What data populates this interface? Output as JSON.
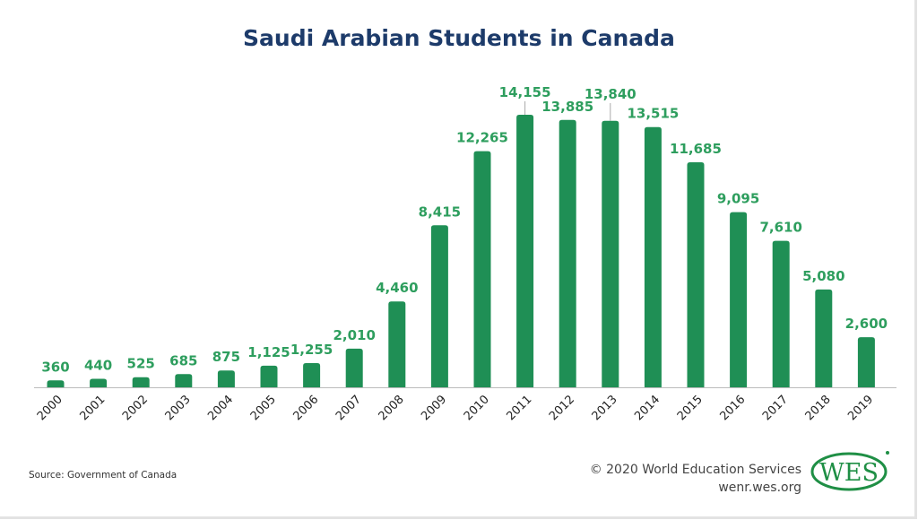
{
  "chart_data": {
    "type": "bar",
    "title": "Saudi Arabian Students in Canada",
    "categories": [
      "2000",
      "2001",
      "2002",
      "2003",
      "2004",
      "2005",
      "2006",
      "2007",
      "2008",
      "2009",
      "2010",
      "2011",
      "2012",
      "2013",
      "2014",
      "2015",
      "2016",
      "2017",
      "2018",
      "2019"
    ],
    "values": [
      360,
      440,
      525,
      685,
      875,
      1125,
      1255,
      2010,
      4460,
      8415,
      12265,
      14155,
      13885,
      13840,
      13515,
      11685,
      9095,
      7610,
      5080,
      2600
    ],
    "data_labels": [
      "360",
      "440",
      "525",
      "685",
      "875",
      "1,125",
      "1,255",
      "2,010",
      "4,460",
      "8,415",
      "12,265",
      "14,155",
      "13,885",
      "13,840",
      "13,515",
      "11,685",
      "9,095",
      "7,610",
      "5,080",
      "2,600"
    ],
    "xlabel": "",
    "ylabel": "",
    "ylim": [
      0,
      14155
    ],
    "grid": false,
    "colors": {
      "bar": "#1f8f55",
      "label": "#2e9e5e",
      "title": "#1d3b6a"
    }
  },
  "footer": {
    "source": "Source: Government of Canada",
    "copyright": "© 2020 World Education Services",
    "website": "wenr.wes.org",
    "logo_text": "WES"
  }
}
